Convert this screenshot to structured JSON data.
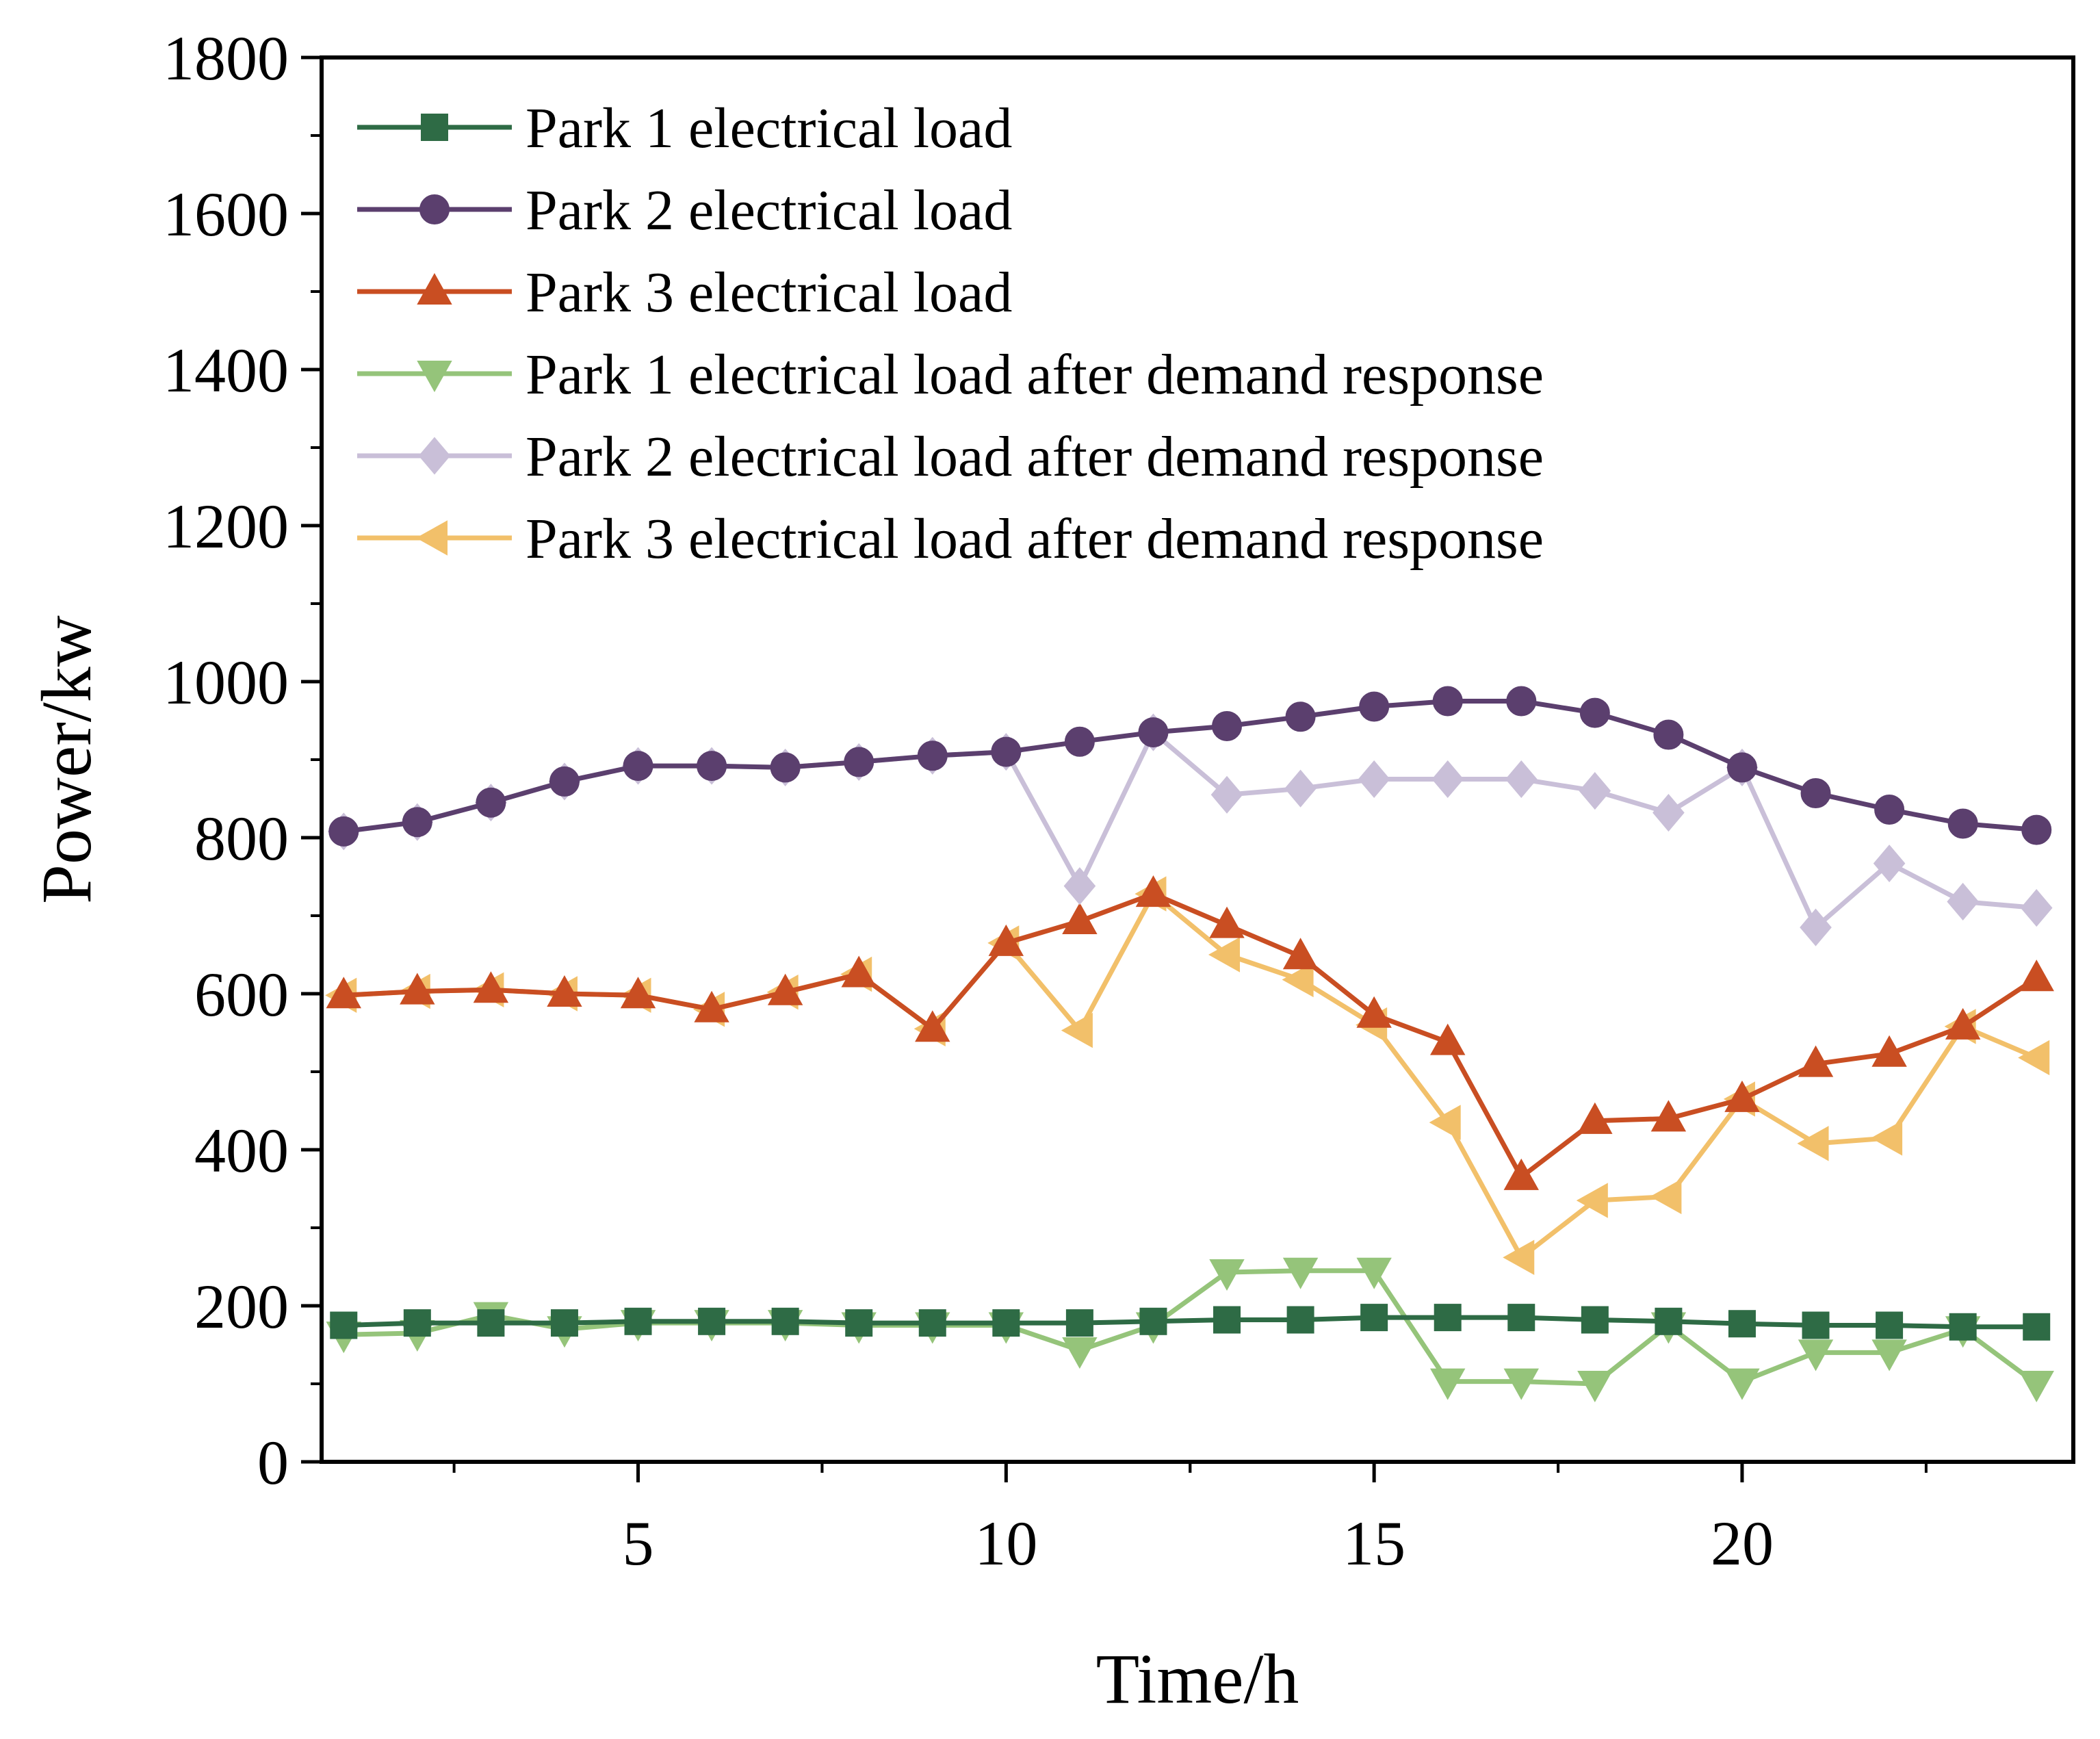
{
  "chart_data": {
    "type": "line",
    "title": "",
    "xlabel": "Time/h",
    "ylabel": "Power/kw",
    "xlim": [
      0.7,
      24.5
    ],
    "ylim": [
      0,
      1800
    ],
    "x_ticks": [
      5,
      10,
      15,
      20
    ],
    "y_ticks": [
      0,
      200,
      400,
      600,
      800,
      1000,
      1200,
      1400,
      1600,
      1800
    ],
    "grid": false,
    "legend_position": "top-left",
    "x": [
      1,
      2,
      3,
      4,
      5,
      6,
      7,
      8,
      9,
      10,
      11,
      12,
      13,
      14,
      15,
      16,
      17,
      18,
      19,
      20,
      21,
      22,
      23,
      24
    ],
    "series": [
      {
        "name": "Park 1 electrical load",
        "color": "#2e6b45",
        "marker": "square",
        "values": [
          175,
          178,
          178,
          178,
          180,
          180,
          180,
          178,
          178,
          178,
          178,
          180,
          182,
          182,
          185,
          185,
          185,
          182,
          180,
          177,
          175,
          175,
          173,
          173
        ]
      },
      {
        "name": "Park 2 electrical load",
        "color": "#5b3f6e",
        "marker": "circle",
        "values": [
          808,
          820,
          845,
          872,
          892,
          892,
          890,
          897,
          905,
          910,
          923,
          935,
          943,
          955,
          968,
          975,
          975,
          960,
          932,
          890,
          857,
          836,
          818,
          810
        ]
      },
      {
        "name": "Park 3 electrical load",
        "color": "#c94e22",
        "marker": "triangle-up",
        "values": [
          598,
          603,
          605,
          600,
          598,
          580,
          602,
          625,
          555,
          665,
          693,
          728,
          688,
          648,
          573,
          538,
          365,
          437,
          440,
          465,
          510,
          523,
          558,
          620
        ]
      },
      {
        "name": "Park 1 electrical load after demand response",
        "color": "#95c47a",
        "marker": "triangle-down",
        "values": [
          163,
          165,
          188,
          170,
          178,
          178,
          178,
          175,
          175,
          175,
          143,
          175,
          243,
          245,
          245,
          103,
          103,
          100,
          175,
          103,
          140,
          140,
          170,
          100
        ]
      },
      {
        "name": "Park 2 electrical load after demand response",
        "color": "#c9bfd8",
        "marker": "diamond",
        "values": [
          808,
          820,
          845,
          872,
          892,
          892,
          890,
          897,
          905,
          910,
          738,
          935,
          855,
          863,
          875,
          875,
          875,
          860,
          832,
          890,
          685,
          767,
          718,
          710
        ]
      },
      {
        "name": "Park 3 electrical load after demand response",
        "color": "#f2c06a",
        "marker": "triangle-left",
        "values": [
          598,
          603,
          605,
          600,
          598,
          580,
          602,
          625,
          555,
          665,
          553,
          728,
          650,
          618,
          560,
          435,
          262,
          335,
          340,
          465,
          408,
          415,
          558,
          518
        ]
      }
    ]
  }
}
